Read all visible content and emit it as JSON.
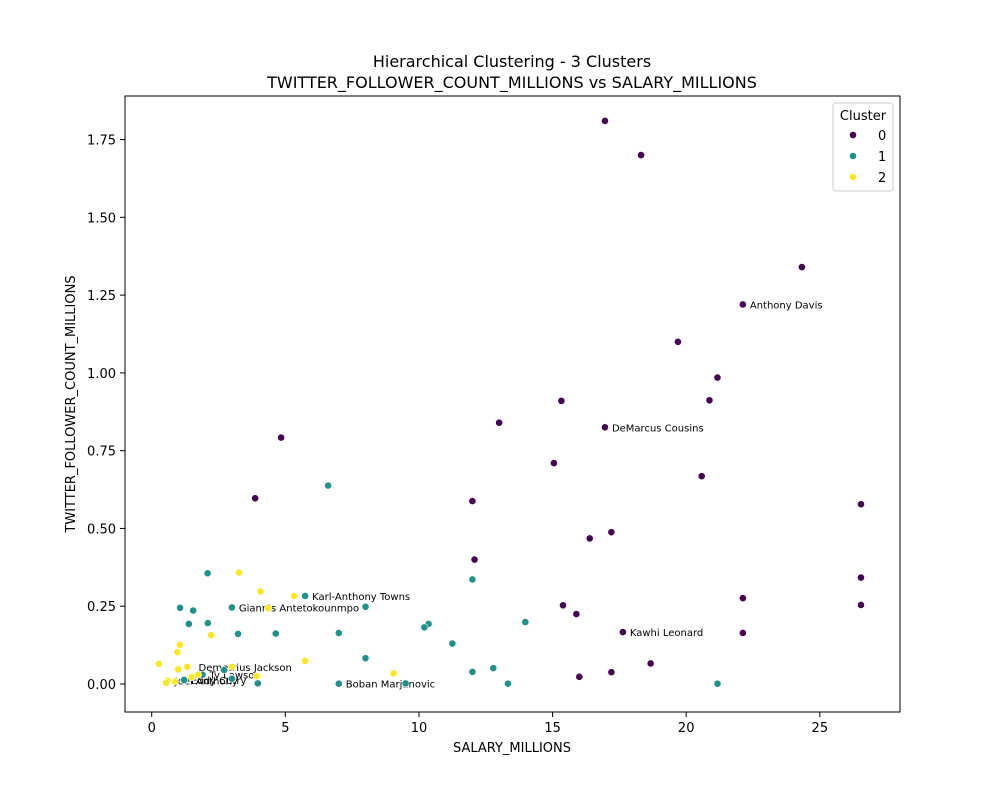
{
  "chart_data": {
    "type": "scatter",
    "title": "Hierarchical Clustering - 3 Clusters",
    "subtitle": "TWITTER_FOLLOWER_COUNT_MILLIONS vs SALARY_MILLIONS",
    "xlabel": "SALARY_MILLIONS",
    "ylabel": "TWITTER_FOLLOWER_COUNT_MILLIONS",
    "xlim": [
      -1,
      28
    ],
    "ylim": [
      -0.09,
      1.89
    ],
    "xticks": [
      0,
      5,
      10,
      15,
      20,
      25
    ],
    "xtick_labels": [
      "0",
      "5",
      "10",
      "15",
      "20",
      "25"
    ],
    "yticks": [
      0.0,
      0.25,
      0.5,
      0.75,
      1.0,
      1.25,
      1.5,
      1.75
    ],
    "ytick_labels": [
      "0.00",
      "0.25",
      "0.50",
      "0.75",
      "1.00",
      "1.25",
      "1.50",
      "1.75"
    ],
    "grid": false,
    "legend": {
      "title": "Cluster",
      "placement": "top-right",
      "entries": [
        {
          "label": "0",
          "color": "#440154"
        },
        {
          "label": "1",
          "color": "#21918c"
        },
        {
          "label": "2",
          "color": "#fde725"
        }
      ]
    },
    "series": [
      {
        "name": "0",
        "color": "#440154",
        "points": [
          [
            16.96,
            1.81
          ],
          [
            18.31,
            1.7
          ],
          [
            24.33,
            1.34
          ],
          [
            22.12,
            1.22
          ],
          [
            19.69,
            1.1
          ],
          [
            21.17,
            0.985
          ],
          [
            20.87,
            0.912
          ],
          [
            15.33,
            0.91
          ],
          [
            13.0,
            0.84
          ],
          [
            16.96,
            0.825
          ],
          [
            4.84,
            0.792
          ],
          [
            15.05,
            0.71
          ],
          [
            20.58,
            0.668
          ],
          [
            3.87,
            0.597
          ],
          [
            12.0,
            0.588
          ],
          [
            26.54,
            0.578
          ],
          [
            17.2,
            0.488
          ],
          [
            16.39,
            0.468
          ],
          [
            12.08,
            0.4
          ],
          [
            26.54,
            0.342
          ],
          [
            22.12,
            0.276
          ],
          [
            15.39,
            0.253
          ],
          [
            26.54,
            0.254
          ],
          [
            15.89,
            0.225
          ],
          [
            17.63,
            0.167
          ],
          [
            22.12,
            0.164
          ],
          [
            18.67,
            0.066
          ],
          [
            17.2,
            0.038
          ],
          [
            16.0,
            0.023
          ]
        ]
      },
      {
        "name": "1",
        "color": "#21918c",
        "points": [
          [
            6.6,
            0.638
          ],
          [
            2.09,
            0.356
          ],
          [
            12.0,
            0.336
          ],
          [
            5.74,
            0.283
          ],
          [
            8.0,
            0.248
          ],
          [
            1.06,
            0.245
          ],
          [
            3.0,
            0.246
          ],
          [
            1.55,
            0.236
          ],
          [
            1.39,
            0.193
          ],
          [
            2.1,
            0.196
          ],
          [
            13.98,
            0.199
          ],
          [
            10.36,
            0.193
          ],
          [
            10.2,
            0.182
          ],
          [
            3.23,
            0.161
          ],
          [
            4.64,
            0.162
          ],
          [
            7.0,
            0.164
          ],
          [
            11.25,
            0.13
          ],
          [
            8.0,
            0.083
          ],
          [
            12.78,
            0.051
          ],
          [
            2.71,
            0.045
          ],
          [
            12.0,
            0.039
          ],
          [
            1.9,
            0.03
          ],
          [
            3.0,
            0.017
          ],
          [
            1.21,
            0.013
          ],
          [
            3.97,
            0.002
          ],
          [
            7.0,
            0.001
          ],
          [
            9.5,
            0.002
          ],
          [
            13.33,
            0.001
          ],
          [
            21.17,
            0.001
          ]
        ]
      },
      {
        "name": "2",
        "color": "#fde725",
        "points": [
          [
            3.27,
            0.358
          ],
          [
            4.07,
            0.297
          ],
          [
            5.33,
            0.283
          ],
          [
            4.36,
            0.244
          ],
          [
            2.22,
            0.157
          ],
          [
            1.05,
            0.126
          ],
          [
            0.96,
            0.102
          ],
          [
            5.74,
            0.074
          ],
          [
            0.27,
            0.065
          ],
          [
            1.33,
            0.055
          ],
          [
            3.0,
            0.055
          ],
          [
            0.99,
            0.047
          ],
          [
            9.05,
            0.034
          ],
          [
            1.73,
            0.03
          ],
          [
            3.93,
            0.025
          ],
          [
            1.49,
            0.022
          ],
          [
            0.6,
            0.011
          ],
          [
            0.87,
            0.008
          ],
          [
            0.54,
            0.004
          ]
        ]
      }
    ],
    "annotations": [
      {
        "text": "Anthony Davis",
        "x": 22.12,
        "y": 1.22
      },
      {
        "text": "DeMarcus Cousins",
        "x": 16.96,
        "y": 0.825
      },
      {
        "text": "Karl-Anthony Towns",
        "x": 5.74,
        "y": 0.283
      },
      {
        "text": "Giannis Antetokounmpo",
        "x": 3.0,
        "y": 0.246
      },
      {
        "text": "Kawhi Leonard",
        "x": 17.63,
        "y": 0.167
      },
      {
        "text": "Demetrius Jackson",
        "x": 1.49,
        "y": 0.055
      },
      {
        "text": "Eddy Curry",
        "x": 1.21,
        "y": 0.013
      },
      {
        "text": "Joel Anthony",
        "x": 0.6,
        "y": 0.011
      },
      {
        "text": "Ty Lawson",
        "x": 1.9,
        "y": 0.03
      },
      {
        "text": "Boban Marjanovic",
        "x": 7.0,
        "y": 0.001
      }
    ]
  }
}
